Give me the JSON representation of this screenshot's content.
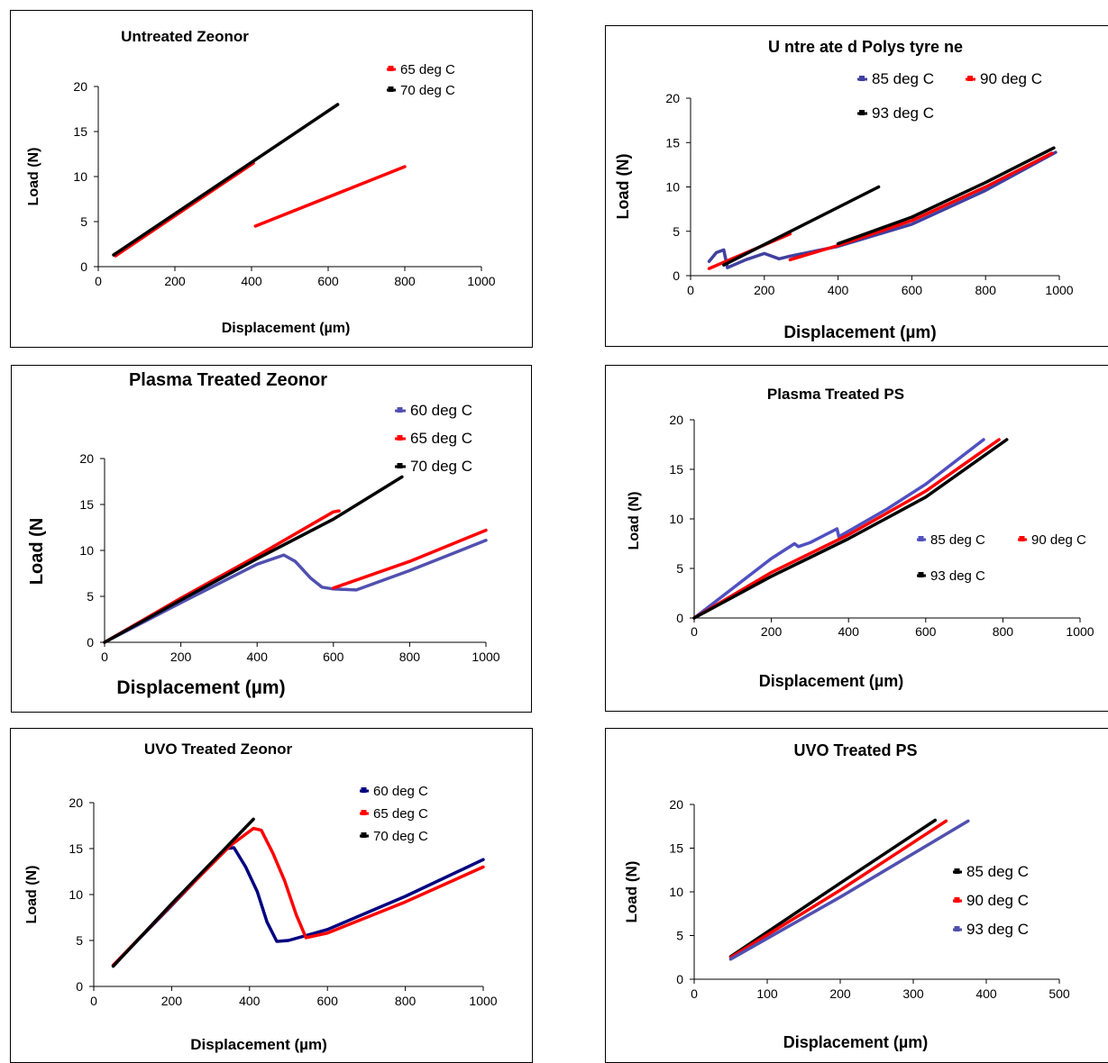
{
  "chart_data": [
    {
      "type": "line",
      "title": "Untreated Zeonor",
      "xlabel": "Displacement (µm)",
      "ylabel": "Load (N)",
      "xlim": [
        0,
        1000
      ],
      "ylim": [
        0,
        20
      ],
      "xticks": [
        "0",
        "200",
        "400",
        "600",
        "800",
        "1000"
      ],
      "yticks": [
        "0",
        "5",
        "10",
        "15",
        "20"
      ],
      "legend_position": "top-right",
      "series": [
        {
          "name": "65 deg C",
          "color": "#ff0000",
          "segments": [
            [
              [
                45,
                1.2
              ],
              [
                405,
                11.5
              ]
            ],
            [
              [
                410,
                4.5
              ],
              [
                800,
                11.1
              ]
            ]
          ]
        },
        {
          "name": "70 deg C",
          "color": "#000000",
          "segments": [
            [
              [
                40,
                1.3
              ],
              [
                625,
                18.0
              ]
            ]
          ]
        }
      ]
    },
    {
      "type": "line",
      "title": "U ntre ate d  Polys tyre ne",
      "xlabel": "Displacement (µm)",
      "ylabel": "Load (N)",
      "xlim": [
        0,
        1000
      ],
      "ylim": [
        0,
        20
      ],
      "xticks": [
        "0",
        "200",
        "400",
        "600",
        "800",
        "1000"
      ],
      "yticks": [
        "0",
        "5",
        "10",
        "15",
        "20"
      ],
      "legend_position": "top",
      "series": [
        {
          "name": "85 deg C",
          "color": "#4040a0",
          "segments": [
            [
              [
                50,
                1.6
              ],
              [
                70,
                2.6
              ],
              [
                90,
                2.9
              ],
              [
                100,
                0.9
              ],
              [
                150,
                1.8
              ],
              [
                200,
                2.5
              ],
              [
                240,
                1.9
              ],
              [
                270,
                2.2
              ],
              [
                400,
                3.3
              ],
              [
                600,
                5.8
              ],
              [
                800,
                9.6
              ],
              [
                990,
                13.9
              ]
            ]
          ]
        },
        {
          "name": "90 deg C",
          "color": "#ff0000",
          "segments": [
            [
              [
                50,
                0.8
              ],
              [
                270,
                4.7
              ]
            ],
            [
              [
                270,
                1.8
              ],
              [
                400,
                3.4
              ],
              [
                600,
                6.2
              ],
              [
                800,
                10.0
              ],
              [
                980,
                13.8
              ]
            ]
          ]
        },
        {
          "name": "93 deg C",
          "color": "#000000",
          "segments": [
            [
              [
                90,
                1.2
              ],
              [
                510,
                10.0
              ]
            ],
            [
              [
                400,
                3.6
              ],
              [
                600,
                6.6
              ],
              [
                800,
                10.5
              ],
              [
                985,
                14.4
              ]
            ]
          ]
        }
      ]
    },
    {
      "type": "line",
      "title": "Plasma Treated Zeonor",
      "xlabel": "Displacement (µm)",
      "ylabel": "Load (N",
      "xlim": [
        0,
        1000
      ],
      "ylim": [
        0,
        20
      ],
      "xticks": [
        "0",
        "200",
        "400",
        "600",
        "800",
        "1000"
      ],
      "yticks": [
        "0",
        "5",
        "10",
        "15",
        "20"
      ],
      "legend_position": "top-right",
      "series": [
        {
          "name": "60 deg C",
          "color": "#5050b0",
          "segments": [
            [
              [
                0,
                0
              ],
              [
                200,
                4.3
              ],
              [
                400,
                8.5
              ],
              [
                470,
                9.5
              ],
              [
                500,
                8.8
              ],
              [
                540,
                7.0
              ],
              [
                570,
                6.0
              ],
              [
                600,
                5.8
              ],
              [
                660,
                5.7
              ],
              [
                800,
                7.8
              ],
              [
                1000,
                11.1
              ]
            ]
          ]
        },
        {
          "name": "65 deg C",
          "color": "#ff0000",
          "segments": [
            [
              [
                0,
                0
              ],
              [
                200,
                4.8
              ],
              [
                400,
                9.4
              ],
              [
                600,
                14.2
              ],
              [
                615,
                14.3
              ]
            ],
            [
              [
                600,
                5.9
              ],
              [
                800,
                8.8
              ],
              [
                1000,
                12.2
              ]
            ]
          ]
        },
        {
          "name": "70 deg C",
          "color": "#000000",
          "segments": [
            [
              [
                0,
                0
              ],
              [
                200,
                4.6
              ],
              [
                400,
                9.1
              ],
              [
                600,
                13.4
              ],
              [
                780,
                18.0
              ]
            ]
          ]
        }
      ]
    },
    {
      "type": "line",
      "title": "Plasma Treated PS",
      "xlabel": "Displacement (µm)",
      "ylabel": "Load (N)",
      "xlim": [
        0,
        1000
      ],
      "ylim": [
        0,
        20
      ],
      "xticks": [
        "0",
        "200",
        "400",
        "600",
        "800",
        "1000"
      ],
      "yticks": [
        "0",
        "5",
        "10",
        "15",
        "20"
      ],
      "legend_position": "right",
      "series": [
        {
          "name": "85 deg C",
          "color": "#5050c0",
          "segments": [
            [
              [
                0,
                0
              ],
              [
                100,
                3.0
              ],
              [
                200,
                6.0
              ],
              [
                260,
                7.5
              ],
              [
                270,
                7.2
              ],
              [
                300,
                7.6
              ],
              [
                370,
                9.0
              ],
              [
                375,
                8.2
              ],
              [
                500,
                11.0
              ],
              [
                600,
                13.5
              ],
              [
                750,
                18.0
              ]
            ]
          ]
        },
        {
          "name": "90 deg C",
          "color": "#ff0000",
          "segments": [
            [
              [
                0,
                0
              ],
              [
                200,
                4.6
              ],
              [
                400,
                8.4
              ],
              [
                600,
                12.8
              ],
              [
                790,
                18.0
              ]
            ]
          ]
        },
        {
          "name": "93 deg C",
          "color": "#000000",
          "segments": [
            [
              [
                0,
                0
              ],
              [
                200,
                4.2
              ],
              [
                400,
                8.0
              ],
              [
                600,
                12.2
              ],
              [
                810,
                18.0
              ]
            ]
          ]
        }
      ]
    },
    {
      "type": "line",
      "title": "UVO Treated Zeonor",
      "xlabel": "Displacement (µm)",
      "ylabel": "Load (N)",
      "xlim": [
        0,
        1000
      ],
      "ylim": [
        0,
        20
      ],
      "xticks": [
        "0",
        "200",
        "400",
        "600",
        "800",
        "1000"
      ],
      "yticks": [
        "0",
        "5",
        "10",
        "15",
        "20"
      ],
      "legend_position": "top-right",
      "series": [
        {
          "name": "60 deg C",
          "color": "#000080",
          "segments": [
            [
              [
                50,
                2.3
              ],
              [
                200,
                8.8
              ],
              [
                340,
                15.0
              ],
              [
                360,
                15.1
              ],
              [
                390,
                13.0
              ],
              [
                420,
                10.3
              ],
              [
                445,
                7.0
              ],
              [
                470,
                4.9
              ],
              [
                500,
                5.0
              ],
              [
                600,
                6.2
              ],
              [
                800,
                9.8
              ],
              [
                1000,
                13.8
              ]
            ]
          ]
        },
        {
          "name": "65 deg C",
          "color": "#ff0000",
          "segments": [
            [
              [
                50,
                2.3
              ],
              [
                200,
                8.9
              ],
              [
                350,
                15.3
              ],
              [
                410,
                17.2
              ],
              [
                430,
                17.0
              ],
              [
                460,
                14.5
              ],
              [
                490,
                11.5
              ],
              [
                520,
                7.8
              ],
              [
                545,
                5.3
              ],
              [
                600,
                5.8
              ],
              [
                800,
                9.2
              ],
              [
                1000,
                13.0
              ]
            ]
          ]
        },
        {
          "name": "70 deg C",
          "color": "#000000",
          "segments": [
            [
              [
                50,
                2.2
              ],
              [
                200,
                9.0
              ],
              [
                410,
                18.2
              ]
            ]
          ]
        }
      ]
    },
    {
      "type": "line",
      "title": "UVO Treated PS",
      "xlabel": "Displacement (µm)",
      "ylabel": "Load (N)",
      "xlim": [
        0,
        500
      ],
      "ylim": [
        0,
        20
      ],
      "xticks": [
        "0",
        "100",
        "200",
        "300",
        "400",
        "500"
      ],
      "yticks": [
        "0",
        "5",
        "10",
        "15",
        "20"
      ],
      "legend_position": "right",
      "series": [
        {
          "name": "85 deg C",
          "color": "#000000",
          "segments": [
            [
              [
                50,
                2.6
              ],
              [
                200,
                11.0
              ],
              [
                330,
                18.2
              ]
            ]
          ]
        },
        {
          "name": "90 deg C",
          "color": "#ff0000",
          "segments": [
            [
              [
                50,
                2.5
              ],
              [
                200,
                10.2
              ],
              [
                345,
                18.1
              ]
            ]
          ]
        },
        {
          "name": "93 deg C",
          "color": "#5050b0",
          "segments": [
            [
              [
                50,
                2.3
              ],
              [
                200,
                9.4
              ],
              [
                375,
                18.1
              ]
            ]
          ]
        }
      ]
    }
  ]
}
